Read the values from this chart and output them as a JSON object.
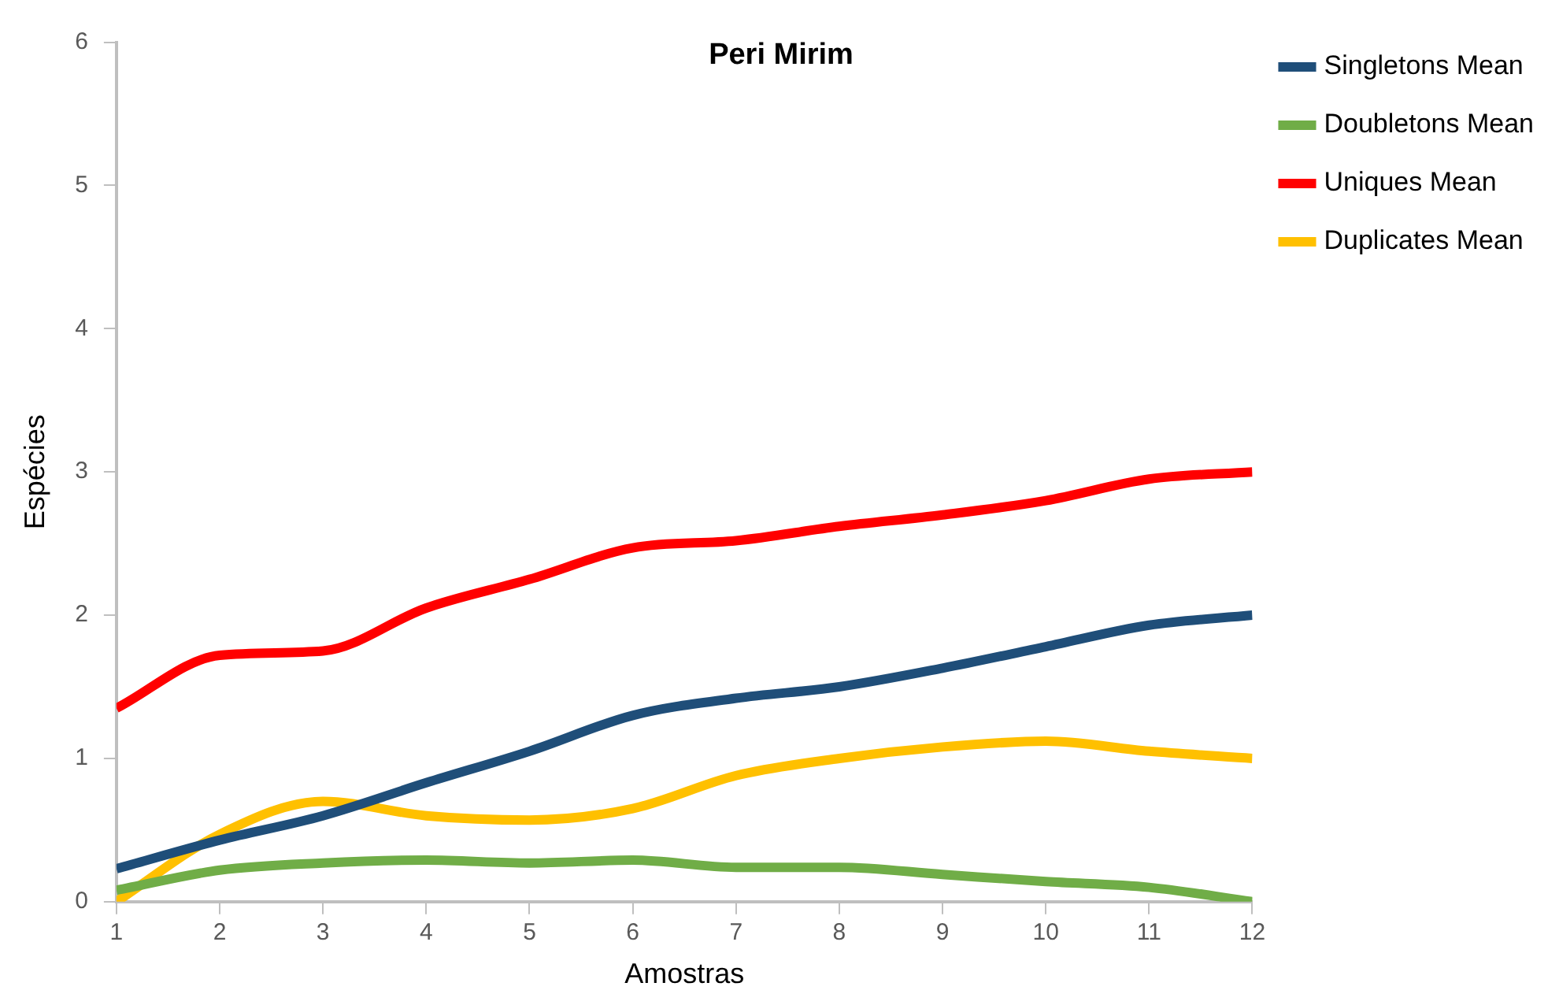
{
  "chart_data": {
    "type": "line",
    "title": "Peri Mirim",
    "xlabel": "Amostras",
    "ylabel": "Espécies",
    "x": [
      1,
      2,
      3,
      4,
      5,
      6,
      7,
      8,
      9,
      10,
      11,
      12
    ],
    "xlim": [
      1,
      12
    ],
    "xticks": [
      1,
      2,
      3,
      4,
      5,
      6,
      7,
      8,
      9,
      10,
      11,
      12
    ],
    "ylim": [
      0,
      6
    ],
    "yticks": [
      0,
      1,
      2,
      3,
      4,
      5,
      6
    ],
    "grid": false,
    "legend": "right",
    "marker": "none",
    "line_style": "solid",
    "series": [
      {
        "name": "Singletons Mean",
        "color": "#1f4e79",
        "values": [
          0.23,
          0.43,
          0.6,
          0.83,
          1.05,
          1.3,
          1.42,
          1.5,
          1.63,
          1.78,
          1.93,
          2.0
        ]
      },
      {
        "name": "Doubletons Mean",
        "color": "#70ad47",
        "values": [
          0.08,
          0.22,
          0.27,
          0.29,
          0.27,
          0.29,
          0.24,
          0.24,
          0.19,
          0.14,
          0.1,
          0.0
        ]
      },
      {
        "name": "Uniques Mean",
        "color": "#ff0000",
        "values": [
          1.35,
          1.72,
          1.75,
          2.05,
          2.25,
          2.47,
          2.52,
          2.62,
          2.7,
          2.8,
          2.95,
          3.0
        ]
      },
      {
        "name": "Duplicates Mean",
        "color": "#ffc000",
        "values": [
          0.0,
          0.47,
          0.7,
          0.6,
          0.57,
          0.65,
          0.88,
          1.0,
          1.08,
          1.12,
          1.05,
          1.0
        ]
      }
    ]
  }
}
